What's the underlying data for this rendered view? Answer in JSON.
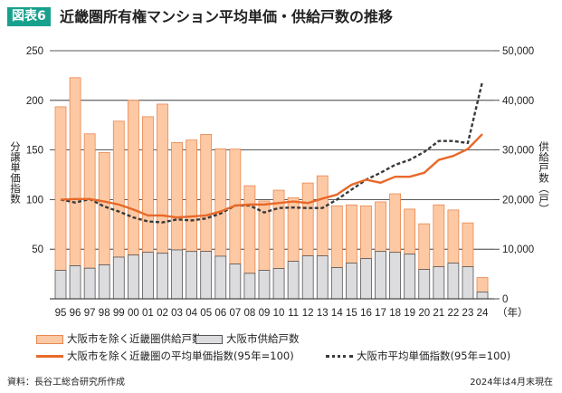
{
  "header": {
    "badge": "図表6",
    "title": "近畿圏所有権マンション平均単価・供給戸数の推移"
  },
  "chart_data": {
    "type": "bar+line",
    "title": "近畿圏所有権マンション平均単価・供給戸数の推移",
    "categories": [
      "95",
      "96",
      "97",
      "98",
      "99",
      "00",
      "01",
      "02",
      "03",
      "04",
      "05",
      "06",
      "07",
      "08",
      "09",
      "10",
      "11",
      "12",
      "13",
      "14",
      "15",
      "16",
      "17",
      "18",
      "19",
      "20",
      "21",
      "22",
      "23",
      "24"
    ],
    "x_unit_label": "（年）",
    "left_axis": {
      "label": "分譲単価指数",
      "ylim": [
        0,
        250
      ],
      "ticks": [
        "50",
        "100",
        "150",
        "200",
        "250"
      ]
    },
    "right_axis": {
      "label": "供給戸数（戸）",
      "ylim": [
        0,
        50000
      ],
      "ticks": [
        "0",
        "10,000",
        "20,000",
        "30,000",
        "40,000",
        "50,000"
      ]
    },
    "series": [
      {
        "name": "大阪市を除く近畿圏供給戸数",
        "type": "bar",
        "stack": "supply",
        "axis": "right",
        "color": "#fdc9a4",
        "values": [
          32960,
          37910,
          27080,
          22670,
          27400,
          31170,
          27330,
          30050,
          21640,
          22450,
          23570,
          21640,
          23160,
          17650,
          13970,
          15780,
          12820,
          14690,
          16140,
          12450,
          11730,
          10640,
          9980,
          11790,
          9070,
          9190,
          12460,
          10700,
          8830,
          2900
        ]
      },
      {
        "name": "大阪市供給戸数",
        "type": "bar",
        "stack": "supply",
        "axis": "right",
        "color": "#dcdcdf",
        "values": [
          5740,
          6650,
          6170,
          6830,
          8400,
          8830,
          9370,
          9190,
          9860,
          9550,
          9560,
          8590,
          7010,
          5140,
          5740,
          6110,
          7560,
          8650,
          8650,
          6290,
          7200,
          8100,
          9550,
          9370,
          9010,
          5930,
          6470,
          7200,
          6470,
          1390
        ]
      },
      {
        "name": "大阪市を除く近畿圏の平均単価指数(95年=100)",
        "type": "line",
        "axis": "left",
        "color": "#e8692a",
        "values": [
          100,
          100.5,
          100.5,
          98,
          95,
          90,
          84,
          84,
          82,
          83,
          84,
          88,
          94,
          95,
          95,
          96.5,
          98,
          96.5,
          101,
          105,
          115,
          120,
          117,
          123,
          123,
          127,
          140,
          144,
          151,
          166
        ]
      },
      {
        "name": "大阪市平均単価指数(95年=100)",
        "type": "line",
        "dashed": true,
        "axis": "left",
        "color": "#3a3a3a",
        "values": [
          100,
          97,
          100.5,
          93,
          88,
          82,
          78,
          77,
          80,
          79,
          81,
          86,
          94,
          94,
          87,
          91.5,
          92,
          91.5,
          91.5,
          100,
          110,
          120,
          127,
          135,
          140,
          148,
          159,
          159,
          157,
          219
        ]
      }
    ],
    "legend": "bottom",
    "grid": true
  },
  "footer": {
    "source": "資料：長谷工総合研究所作成",
    "note": "2024年は4月末現在"
  }
}
